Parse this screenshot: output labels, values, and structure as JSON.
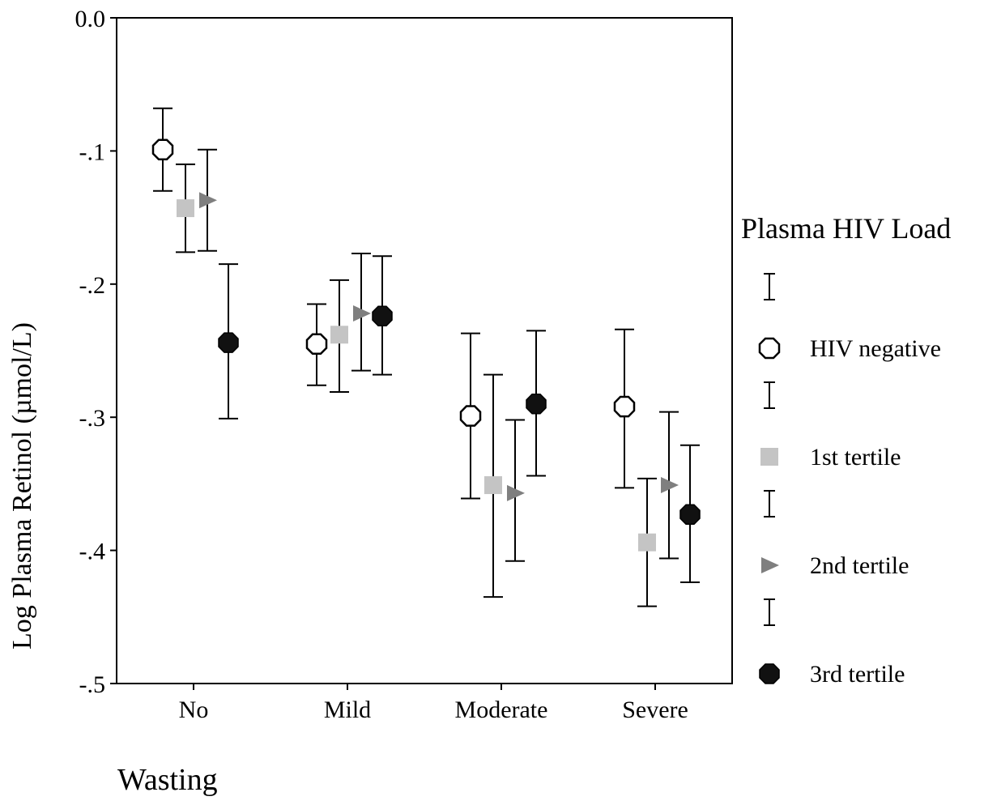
{
  "chart_data": {
    "type": "scatter",
    "title": "",
    "xlabel": "Wasting",
    "ylabel": "Log Plasma Retinol (µmol/L)",
    "categories": [
      "No",
      "Mild",
      "Moderate",
      "Severe"
    ],
    "yticks": [
      "0.0",
      "-.1",
      "-.2",
      "-.3",
      "-.4",
      "-.5"
    ],
    "ylim": [
      -0.5,
      0.0
    ],
    "grid": false,
    "legend_title": "Plasma HIV Load",
    "legend_position": "right",
    "series": [
      {
        "name": "HIV negative",
        "marker": "open-octagon",
        "color": "#ffffff",
        "means": [
          -0.099,
          -0.245,
          -0.299,
          -0.292
        ],
        "lower": [
          -0.13,
          -0.276,
          -0.361,
          -0.353
        ],
        "upper": [
          -0.068,
          -0.215,
          -0.237,
          -0.234
        ]
      },
      {
        "name": "1st tertile",
        "marker": "square",
        "color": "#c4c4c4",
        "means": [
          -0.143,
          -0.238,
          -0.351,
          -0.394
        ],
        "lower": [
          -0.176,
          -0.281,
          -0.435,
          -0.442
        ],
        "upper": [
          -0.11,
          -0.197,
          -0.268,
          -0.346
        ]
      },
      {
        "name": "2nd tertile",
        "marker": "triangle-right",
        "color": "#7f7f7f",
        "means": [
          -0.137,
          -0.222,
          -0.357,
          -0.351
        ],
        "lower": [
          -0.175,
          -0.265,
          -0.408,
          -0.406
        ],
        "upper": [
          -0.099,
          -0.177,
          -0.302,
          -0.296
        ]
      },
      {
        "name": "3rd tertile",
        "marker": "filled-octagon",
        "color": "#111111",
        "means": [
          -0.244,
          -0.224,
          -0.29,
          -0.373
        ],
        "lower": [
          -0.301,
          -0.268,
          -0.344,
          -0.424
        ],
        "upper": [
          -0.185,
          -0.179,
          -0.235,
          -0.321
        ]
      }
    ]
  }
}
